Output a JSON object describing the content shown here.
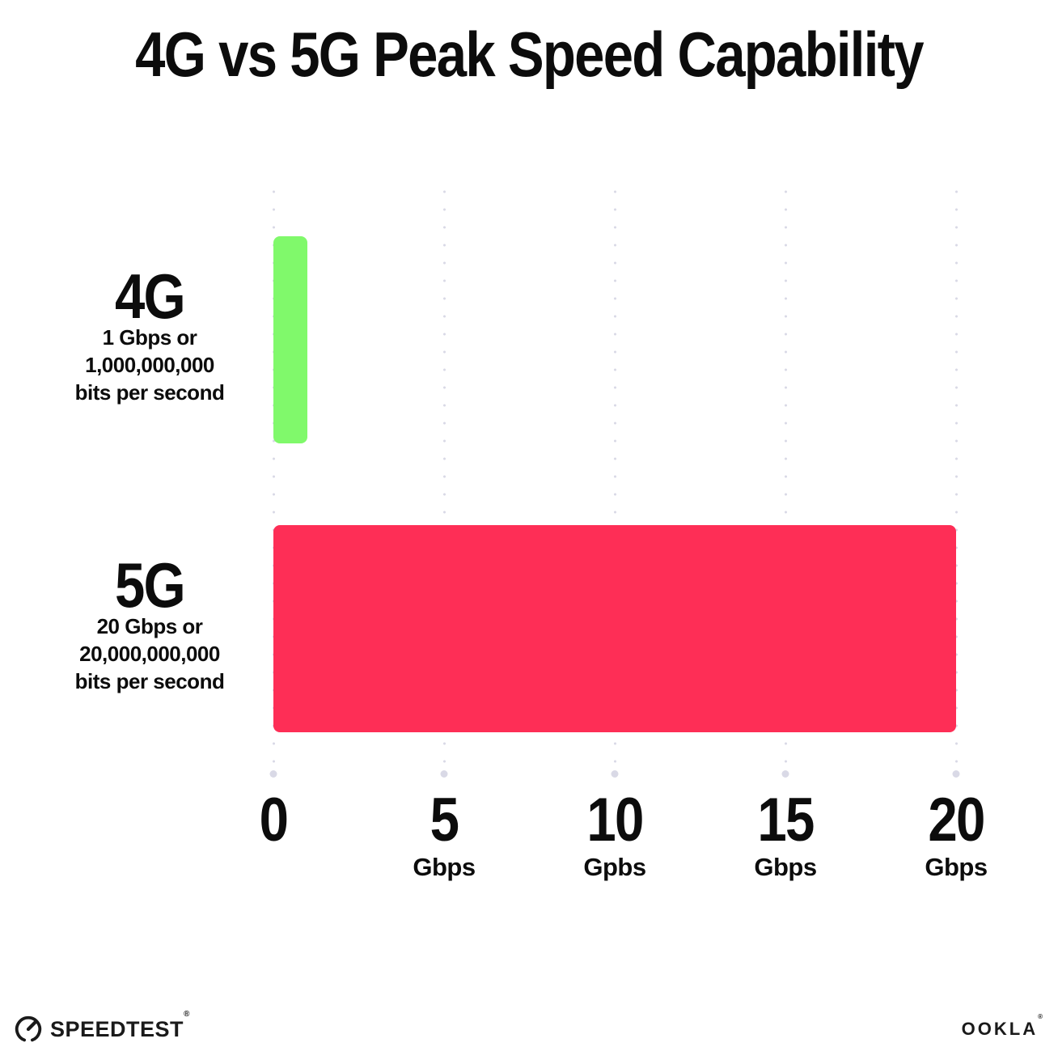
{
  "title": "4G vs 5G Peak Speed Capability",
  "chart_data": {
    "type": "bar",
    "orientation": "horizontal",
    "title": "4G vs 5G Peak Speed Capability",
    "xlabel": "Gbps",
    "xlim": [
      0,
      20
    ],
    "grid": "dotted vertical gridlines at each tick",
    "legend_position": "none",
    "categories": [
      "4G",
      "5G"
    ],
    "values": [
      1,
      20
    ],
    "rows": [
      {
        "label": "4G",
        "sublines": [
          "1 Gbps or",
          "1,000,000,000",
          "bits per second"
        ],
        "value": 1,
        "color": "#80F96B"
      },
      {
        "label": "5G",
        "sublines": [
          "20 Gbps or",
          "20,000,000,000",
          "bits per second"
        ],
        "value": 20,
        "color": "#FE2E56"
      }
    ],
    "xticks": [
      {
        "value": 0,
        "label": "0",
        "unit": ""
      },
      {
        "value": 5,
        "label": "5",
        "unit": "Gbps"
      },
      {
        "value": 10,
        "label": "10",
        "unit": "Gpbs"
      },
      {
        "value": 15,
        "label": "15",
        "unit": "Gbps"
      },
      {
        "value": 20,
        "label": "20",
        "unit": "Gbps"
      }
    ]
  },
  "colors": {
    "bar_4g": "#80F96B",
    "bar_5g": "#FE2E56",
    "grid_dot": "#D9D9E6",
    "text": "#0C0C0C",
    "background": "#FFFFFF"
  },
  "footer": {
    "speedtest_label": "SPEEDTEST",
    "speedtest_trademark": "®",
    "ookla_label": "OOKLA",
    "ookla_trademark": "®"
  }
}
